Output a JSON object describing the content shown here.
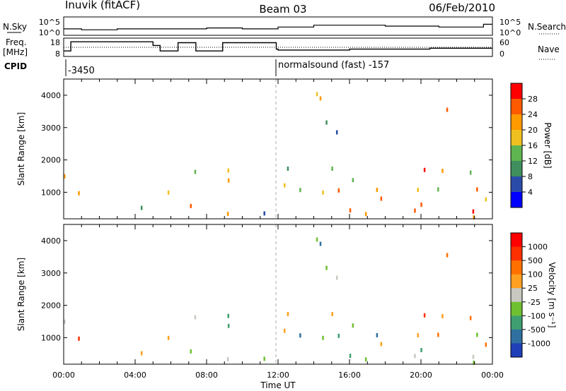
{
  "header": {
    "station": "Inuvik (fitACF)",
    "beam": "Beam 03",
    "date": "06/Feb/2010"
  },
  "top_panels": {
    "nsky_label": "N.Sky",
    "nsky_ticks": [
      "10^5",
      "10^0"
    ],
    "nsearch_label": "N.Search",
    "nsearch_ticks": [
      "10^5",
      "10^0"
    ],
    "freq_label": "Freq.",
    "freq_unit": "[MHz]",
    "freq_ticks": [
      "18",
      "8"
    ],
    "nave_label": "Nave",
    "nave_ticks": [
      "60",
      "0"
    ],
    "cpid_label": "CPID",
    "cpid_segments": [
      {
        "text": "-3450",
        "start_hour": 0
      },
      {
        "text": "normalsound (fast) -157",
        "start_hour": 12
      }
    ]
  },
  "colors": {
    "power": [
      "#0000ff",
      "#2a4ca8",
      "#3f8f5e",
      "#5fb54f",
      "#f0c020",
      "#ff9a00",
      "#ff5a00",
      "#ff0000"
    ],
    "velocity": [
      "#1f3fb8",
      "#2f70a0",
      "#3f9f70",
      "#6fc030",
      "#c8c8c0",
      "#ffa020",
      "#ff7000",
      "#ff3000",
      "#ff0000"
    ]
  },
  "chart_data": [
    {
      "type": "heatmap",
      "quantity": "power",
      "xlabel": "",
      "ylabel": "Slant Range [km]",
      "y_ticks": [
        1000,
        2000,
        3000,
        4000
      ],
      "ylim": [
        180,
        4500
      ],
      "xlim_hours": [
        0,
        24
      ],
      "colorbar": {
        "label": "Power [dB]",
        "ticks": [
          "28",
          "24",
          "20",
          "16",
          "12",
          "8",
          "4"
        ],
        "range": [
          0,
          32
        ]
      }
    },
    {
      "type": "heatmap",
      "quantity": "velocity",
      "xlabel": "Time UT",
      "ylabel": "Slant Range [km]",
      "y_ticks": [
        1000,
        2000,
        3000,
        4000
      ],
      "ylim": [
        180,
        4500
      ],
      "xlim_hours": [
        0,
        24
      ],
      "x_ticks": [
        "00:00",
        "04:00",
        "08:00",
        "12:00",
        "16:00",
        "20:00",
        "00:00"
      ],
      "colorbar": {
        "label": "Velocity [m s⁻¹]",
        "ticks": [
          "1000",
          "500",
          "100",
          "25",
          "-25",
          "-100",
          "-500",
          "-1000"
        ]
      }
    }
  ]
}
